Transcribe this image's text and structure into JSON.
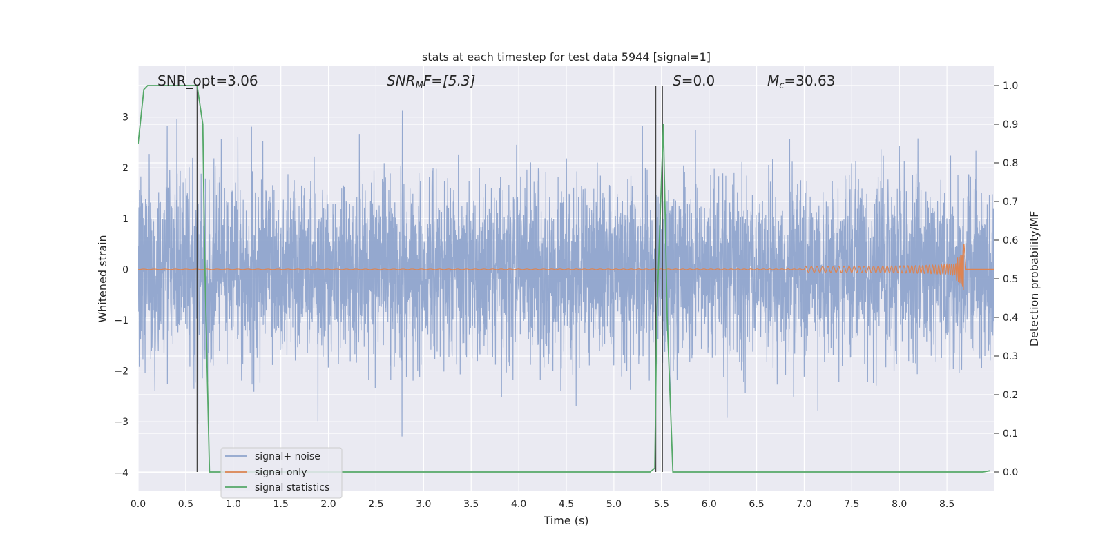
{
  "chart_data": {
    "type": "line",
    "title": "stats at each timestep for test data 5944 [signal=1]",
    "xlabel": "Time (s)",
    "ylabel": "Whitened strain",
    "ylabel_right": "Detection probability/MF",
    "xlim": [
      0.0,
      9.0
    ],
    "ylim": [
      -4.37,
      4.0
    ],
    "ylim_right": [
      -0.05,
      1.05
    ],
    "x_ticks": [
      "0.0",
      "0.5",
      "1.0",
      "1.5",
      "2.0",
      "2.5",
      "3.0",
      "3.5",
      "4.0",
      "4.5",
      "5.0",
      "5.5",
      "6.0",
      "6.5",
      "7.0",
      "7.5",
      "8.0",
      "8.5"
    ],
    "y_ticks": [
      "3",
      "2",
      "1",
      "0",
      "−1",
      "−2",
      "−3",
      "−4"
    ],
    "y_ticks_right": [
      "1.0",
      "0.9",
      "0.8",
      "0.7",
      "0.6",
      "0.5",
      "0.4",
      "0.3",
      "0.2",
      "0.1",
      "0.0"
    ],
    "grid": true,
    "legend_position": "lower-left",
    "annotations": {
      "snr_opt": "SNR_opt=3.06",
      "snr_mf_base": "SNR",
      "snr_mf_sub": "M",
      "snr_mf_rest": "F=[5.3]",
      "s_base": "S",
      "s_rest": "=0.0",
      "mc_base": "M",
      "mc_sub": "c",
      "mc_rest": "=30.63"
    },
    "vertical_lines_x": [
      0.62,
      5.44,
      5.51
    ],
    "series": [
      {
        "name": "signal+ noise",
        "color": "#8fa4cc",
        "description": "whitened noise, amplitude mostly within ±2, spikes to about ±3.5"
      },
      {
        "name": "signal only",
        "color": "#dd8452",
        "description": "chirp waveform, near zero until ~7.5 s, growing to about ±0.7 at 8.68 s"
      },
      {
        "name": "signal statistics",
        "color": "#55a868",
        "axis": "right",
        "points": [
          [
            0.0,
            0.85
          ],
          [
            0.06,
            0.99
          ],
          [
            0.1,
            1.0
          ],
          [
            0.62,
            1.0
          ],
          [
            0.68,
            0.9
          ],
          [
            0.7,
            0.55
          ],
          [
            0.75,
            0.0
          ],
          [
            5.38,
            0.0
          ],
          [
            5.43,
            0.01
          ],
          [
            5.45,
            0.4
          ],
          [
            5.52,
            0.9
          ],
          [
            5.56,
            0.4
          ],
          [
            5.62,
            0.0
          ],
          [
            8.88,
            0.0
          ],
          [
            8.95,
            0.003
          ]
        ]
      }
    ]
  }
}
